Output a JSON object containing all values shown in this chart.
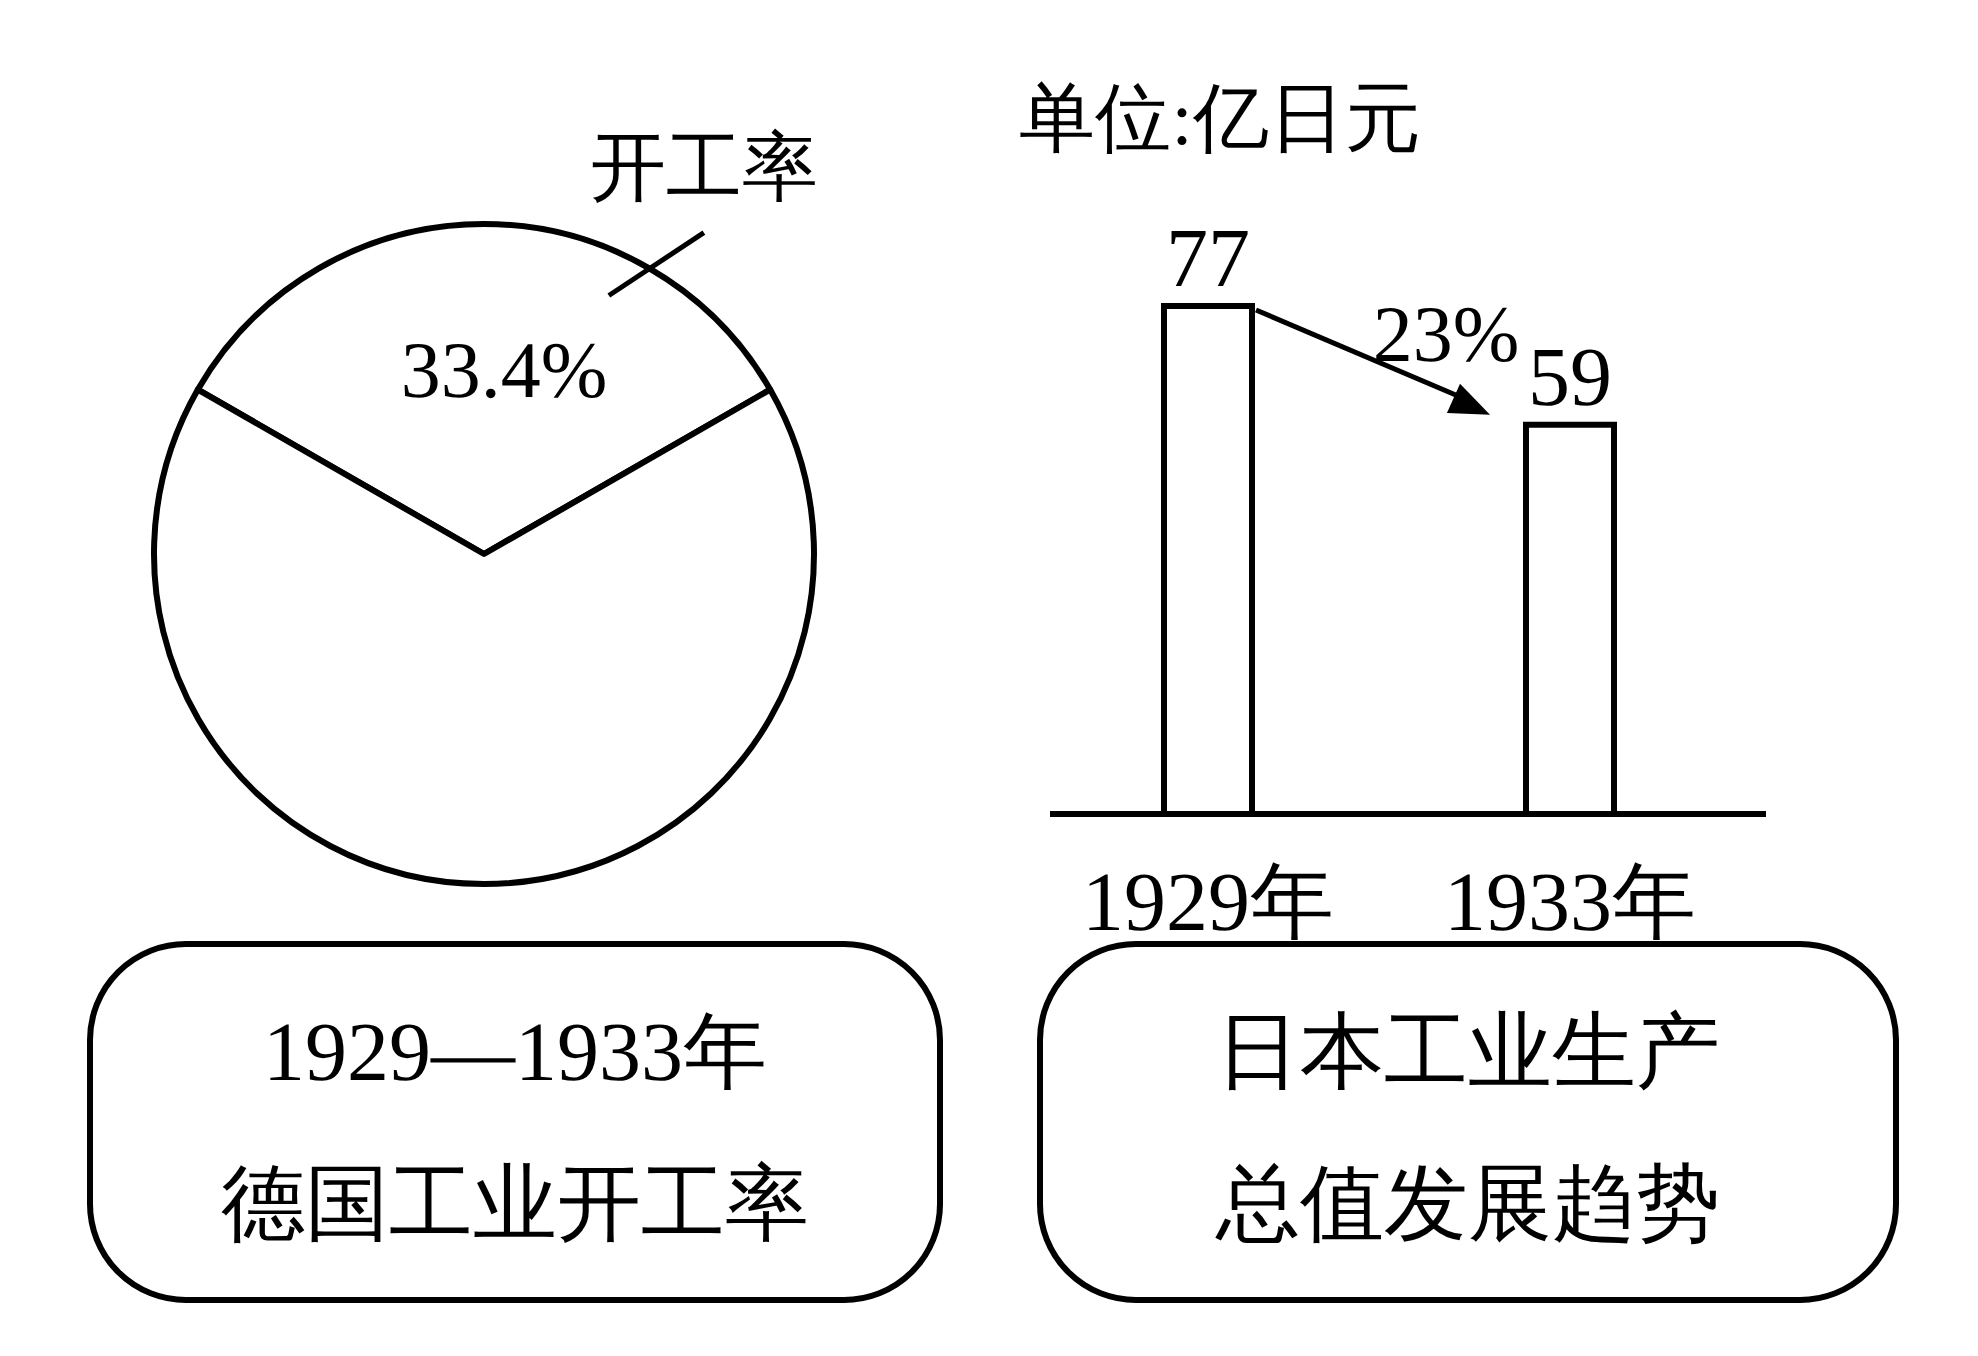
{
  "chart_data": [
    {
      "type": "pie",
      "title": "1929—1933年",
      "subtitle": "德国工业开工率",
      "categories": [
        "开工率",
        null
      ],
      "values": [
        33.4,
        66.6
      ],
      "colors": [
        "#ffffff",
        "#ffffff"
      ],
      "value_labels": [
        "33.4%",
        null
      ]
    },
    {
      "type": "bar",
      "title": "日本工业生产总值发展趋势",
      "categories": [
        "1929年",
        "1933年"
      ],
      "values": [
        77,
        59
      ],
      "color": "#ffffff",
      "data_labels": true,
      "annotations": [
        "单位:亿日元",
        {
          "text": "23%",
          "x": "1933年",
          "y": 59
        }
      ]
    }
  ]
}
